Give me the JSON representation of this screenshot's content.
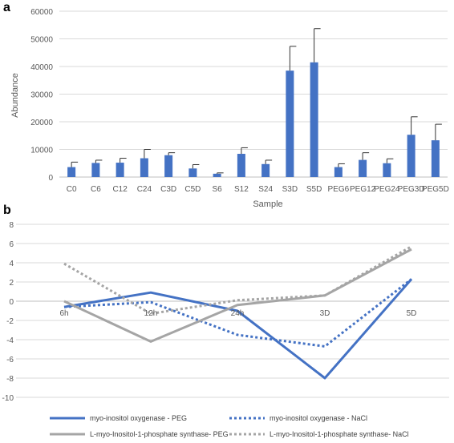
{
  "chart_data": [
    {
      "panel_label": "a",
      "type": "bar",
      "xlabel": "Sample",
      "ylabel": "Abundance",
      "ylim": [
        0,
        60000
      ],
      "yticks": [
        0,
        10000,
        20000,
        30000,
        40000,
        50000,
        60000
      ],
      "grid": true,
      "categories": [
        "C0",
        "C6",
        "C12",
        "C24",
        "C3D",
        "C5D",
        "S6",
        "S12",
        "S24",
        "S3D",
        "S5D",
        "PEG6",
        "PEG12",
        "PEG24",
        "PEG3D",
        "PEG5D"
      ],
      "values": [
        3600,
        5100,
        5200,
        6800,
        7900,
        3100,
        1200,
        8400,
        4700,
        38500,
        41500,
        3600,
        6200,
        5000,
        15300,
        13300
      ],
      "errors": [
        1800,
        1000,
        1600,
        3200,
        900,
        1400,
        300,
        2200,
        1400,
        8800,
        12200,
        1200,
        2600,
        1600,
        6500,
        5800
      ],
      "colors": {
        "bar": "#4472C4",
        "error": "#333333",
        "grid": "#d9d9d9"
      }
    },
    {
      "panel_label": "b",
      "type": "line",
      "ylim": [
        -10,
        8
      ],
      "yticks": [
        -10,
        -8,
        -6,
        -4,
        -2,
        0,
        2,
        4,
        6,
        8
      ],
      "grid": true,
      "categories": [
        "6h",
        "12h",
        "24h",
        "3D",
        "5D"
      ],
      "legend_position": "bottom",
      "series": [
        {
          "name": "myo-inositol oxygenase - PEG",
          "values": [
            -0.6,
            0.9,
            -1.0,
            -8.0,
            2.3
          ],
          "color": "#4472C4",
          "style": "solid"
        },
        {
          "name": "myo-inositol oxygenase - NaCl",
          "values": [
            -0.6,
            -0.1,
            -3.5,
            -4.7,
            2.3
          ],
          "color": "#4472C4",
          "style": "dotted"
        },
        {
          "name": "L-myo-Inositol-1-phosphate synthase- PEG",
          "values": [
            0.0,
            -4.2,
            -0.4,
            0.6,
            5.4
          ],
          "color": "#A5A5A5",
          "style": "solid"
        },
        {
          "name": "L-myo-Inositol-1-phosphate synthase- NaCl",
          "values": [
            3.9,
            -1.3,
            0.1,
            0.6,
            5.7
          ],
          "color": "#A5A5A5",
          "style": "dotted"
        }
      ]
    }
  ]
}
